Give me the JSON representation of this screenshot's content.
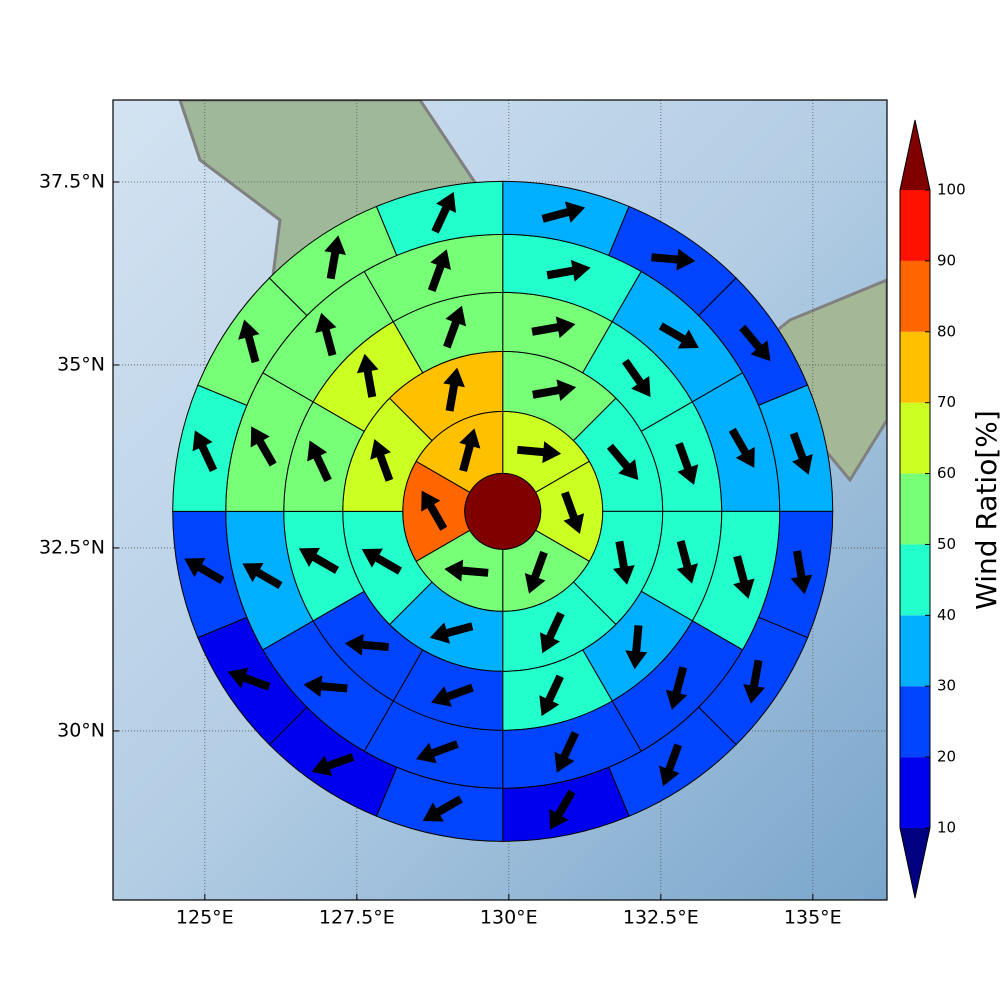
{
  "chart_data": {
    "type": "polar-sector-map",
    "xlim": [
      123.49,
      136.22
    ],
    "ylim": [
      27.69,
      38.62
    ],
    "xticks": [
      {
        "value": 125,
        "label": "125°E"
      },
      {
        "value": 127.5,
        "label": "127.5°E"
      },
      {
        "value": 130,
        "label": "130°E"
      },
      {
        "value": 132.5,
        "label": "132.5°E"
      },
      {
        "value": 135,
        "label": "135°E"
      }
    ],
    "yticks": [
      {
        "value": 30,
        "label": "30°N"
      },
      {
        "value": 32.5,
        "label": "32.5°N"
      },
      {
        "value": 35,
        "label": "35°N"
      },
      {
        "value": 37.5,
        "label": "37.5°N"
      }
    ],
    "grid": true,
    "center": [
      129.9,
      33.0
    ],
    "center_value": 100,
    "rings": [
      {
        "values": [
          65,
          65,
          55,
          55,
          85,
          75
        ],
        "directions": [
          95,
          160,
          200,
          275,
          330,
          15
        ]
      },
      {
        "values": [
          55,
          45,
          45,
          45,
          35,
          45,
          65,
          75
        ],
        "directions": [
          80,
          140,
          170,
          205,
          255,
          300,
          340,
          10
        ]
      },
      {
        "values": [
          55,
          45,
          45,
          45,
          35,
          45,
          25,
          25,
          45,
          55,
          65,
          55
        ],
        "directions": [
          80,
          145,
          160,
          165,
          185,
          205,
          250,
          275,
          300,
          335,
          350,
          20
        ]
      },
      {
        "values": [
          45,
          35,
          35,
          45,
          25,
          25,
          25,
          25,
          35,
          55,
          55,
          55
        ],
        "directions": [
          80,
          120,
          150,
          165,
          195,
          205,
          250,
          275,
          300,
          330,
          345,
          20
        ]
      },
      {
        "values": [
          35,
          25,
          25,
          35,
          25,
          25,
          25,
          15,
          25,
          15,
          15,
          25,
          45,
          55,
          55,
          45
        ],
        "directions": [
          75,
          95,
          140,
          160,
          170,
          190,
          200,
          210,
          240,
          250,
          290,
          300,
          335,
          345,
          10,
          25
        ]
      }
    ],
    "colorbar": {
      "label": "Wind Ratio[%]",
      "ticks": [
        10,
        20,
        30,
        40,
        50,
        60,
        70,
        80,
        90,
        100
      ],
      "colors": [
        "#0000ee",
        "#0044ff",
        "#00b0ff",
        "#22ffcc",
        "#77ff77",
        "#ccff22",
        "#ffc000",
        "#ff6600",
        "#ff1100"
      ],
      "under": "#000080",
      "over": "#800000"
    }
  }
}
